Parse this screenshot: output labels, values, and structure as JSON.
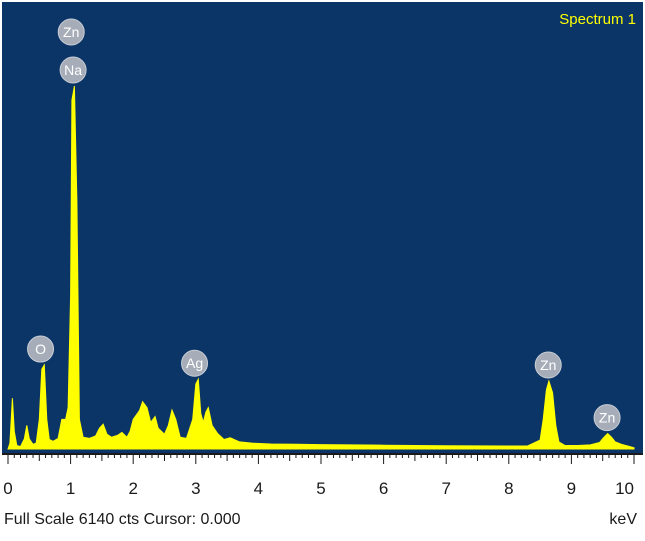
{
  "chart_data": {
    "type": "area",
    "title": "Spectrum 1",
    "xlabel": "keV",
    "ylabel": "",
    "xlim": [
      0,
      10
    ],
    "ylim": [
      0,
      6140
    ],
    "x_ticks": [
      "0",
      "1",
      "2",
      "3",
      "4",
      "5",
      "6",
      "7",
      "8",
      "9",
      "10"
    ],
    "grid": false,
    "series": [
      {
        "points": [
          [
            0.0,
            0
          ],
          [
            0.03,
            100
          ],
          [
            0.07,
            860
          ],
          [
            0.1,
            300
          ],
          [
            0.14,
            60
          ],
          [
            0.2,
            40
          ],
          [
            0.26,
            170
          ],
          [
            0.3,
            400
          ],
          [
            0.34,
            170
          ],
          [
            0.4,
            80
          ],
          [
            0.45,
            100
          ],
          [
            0.5,
            500
          ],
          [
            0.54,
            1350
          ],
          [
            0.58,
            1420
          ],
          [
            0.62,
            500
          ],
          [
            0.66,
            160
          ],
          [
            0.72,
            130
          ],
          [
            0.8,
            180
          ],
          [
            0.86,
            500
          ],
          [
            0.92,
            500
          ],
          [
            0.96,
            700
          ],
          [
            1.0,
            2600
          ],
          [
            1.02,
            5900
          ],
          [
            1.06,
            6140
          ],
          [
            1.1,
            4200
          ],
          [
            1.14,
            500
          ],
          [
            1.2,
            200
          ],
          [
            1.3,
            180
          ],
          [
            1.4,
            220
          ],
          [
            1.46,
            350
          ],
          [
            1.52,
            420
          ],
          [
            1.58,
            250
          ],
          [
            1.65,
            200
          ],
          [
            1.75,
            230
          ],
          [
            1.82,
            280
          ],
          [
            1.9,
            200
          ],
          [
            1.95,
            300
          ],
          [
            2.0,
            500
          ],
          [
            2.1,
            650
          ],
          [
            2.15,
            800
          ],
          [
            2.22,
            700
          ],
          [
            2.28,
            450
          ],
          [
            2.35,
            550
          ],
          [
            2.4,
            350
          ],
          [
            2.5,
            250
          ],
          [
            2.56,
            400
          ],
          [
            2.62,
            660
          ],
          [
            2.68,
            500
          ],
          [
            2.75,
            200
          ],
          [
            2.85,
            180
          ],
          [
            2.95,
            500
          ],
          [
            3.0,
            1100
          ],
          [
            3.04,
            1180
          ],
          [
            3.08,
            600
          ],
          [
            3.12,
            450
          ],
          [
            3.16,
            620
          ],
          [
            3.2,
            700
          ],
          [
            3.26,
            400
          ],
          [
            3.35,
            260
          ],
          [
            3.45,
            160
          ],
          [
            3.55,
            190
          ],
          [
            3.7,
            120
          ],
          [
            3.9,
            100
          ],
          [
            4.2,
            85
          ],
          [
            4.6,
            80
          ],
          [
            5.0,
            75
          ],
          [
            5.5,
            70
          ],
          [
            6.0,
            65
          ],
          [
            6.5,
            60
          ],
          [
            7.0,
            55
          ],
          [
            7.5,
            52
          ],
          [
            8.0,
            50
          ],
          [
            8.3,
            50
          ],
          [
            8.5,
            150
          ],
          [
            8.55,
            500
          ],
          [
            8.6,
            1000
          ],
          [
            8.64,
            1150
          ],
          [
            8.7,
            950
          ],
          [
            8.75,
            400
          ],
          [
            8.8,
            120
          ],
          [
            8.9,
            60
          ],
          [
            9.1,
            60
          ],
          [
            9.3,
            70
          ],
          [
            9.45,
            110
          ],
          [
            9.52,
            200
          ],
          [
            9.58,
            260
          ],
          [
            9.64,
            200
          ],
          [
            9.7,
            120
          ],
          [
            9.8,
            80
          ],
          [
            9.9,
            50
          ],
          [
            10.0,
            20
          ]
        ]
      }
    ],
    "peak_labels": [
      {
        "element": "Zn",
        "keV": 1.01,
        "counts": 6140,
        "stack": 1
      },
      {
        "element": "Na",
        "keV": 1.04,
        "counts": 6140,
        "stack": 0
      },
      {
        "element": "O",
        "keV": 0.52,
        "counts": 1420,
        "stack": 0
      },
      {
        "element": "Ag",
        "keV": 2.98,
        "counts": 1180,
        "stack": 0
      },
      {
        "element": "Zn",
        "keV": 8.63,
        "counts": 1150,
        "stack": 0
      },
      {
        "element": "Zn",
        "keV": 9.57,
        "counts": 260,
        "stack": 0
      }
    ],
    "colors": {
      "background": "#0b3566",
      "spectrum": "#ffff00",
      "title": "#ffff00",
      "peak_marker": "#a6adb8"
    }
  },
  "status_bar": {
    "scale_text": "Full Scale 6140 cts Cursor: 0.000",
    "unit_text": "keV"
  }
}
